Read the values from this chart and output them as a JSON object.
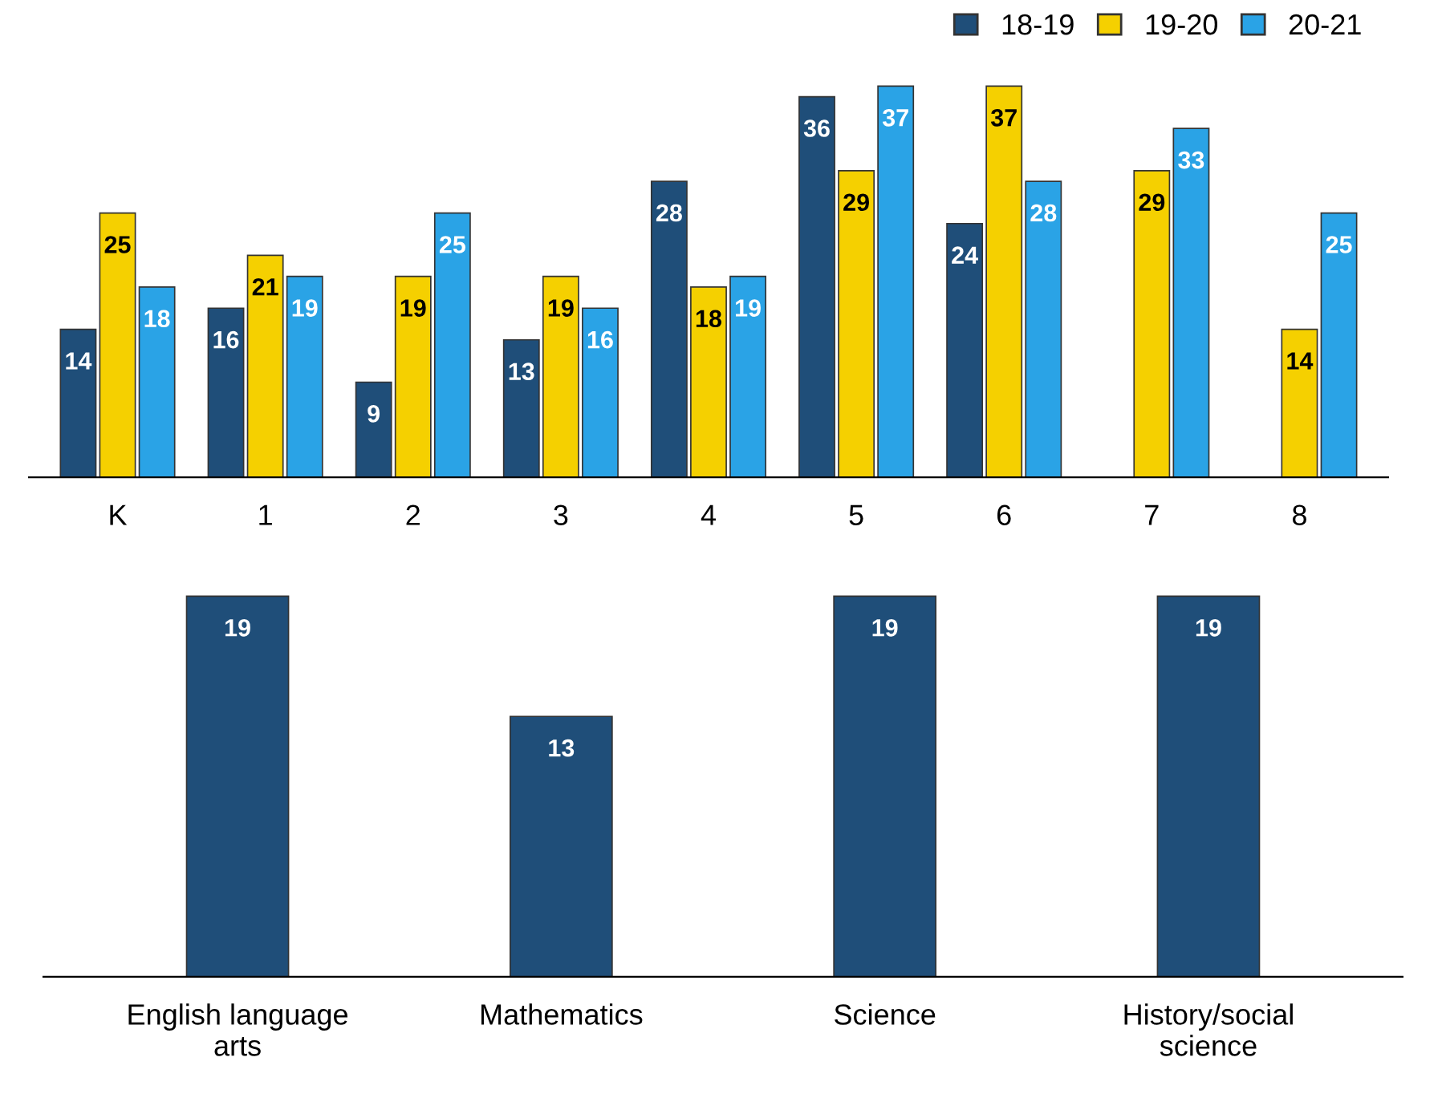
{
  "chart_data": [
    {
      "type": "bar",
      "categories": [
        "K",
        "1",
        "2",
        "3",
        "4",
        "5",
        "6",
        "7",
        "8"
      ],
      "series": [
        {
          "name": "18-19",
          "color": "#1f4e79",
          "values": [
            14,
            16,
            9,
            13,
            28,
            36,
            24,
            null,
            null
          ]
        },
        {
          "name": "19-20",
          "color": "#f5d000",
          "values": [
            25,
            21,
            19,
            19,
            18,
            29,
            37,
            29,
            14
          ]
        },
        {
          "name": "20-21",
          "color": "#2aa3e6",
          "values": [
            18,
            19,
            25,
            16,
            19,
            37,
            28,
            33,
            25
          ]
        }
      ],
      "data_labels": true,
      "legend": "top right",
      "grid": false
    },
    {
      "type": "bar",
      "categories": [
        "English language arts",
        "Mathematics",
        "Science",
        "History/social science"
      ],
      "values": [
        19,
        13,
        19,
        19
      ],
      "color": "#1f4e79",
      "data_labels": true,
      "grid": false
    }
  ]
}
